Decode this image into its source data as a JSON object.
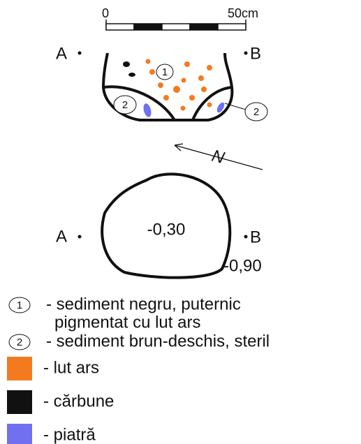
{
  "scale": {
    "start": "0",
    "end": "50cm"
  },
  "section": {
    "left": "A",
    "right": "B",
    "layer1": "1",
    "layer2_left": "2",
    "layer2_right": "2"
  },
  "north": "N",
  "plan": {
    "left": "A",
    "right": "B",
    "top_depth": "-0,30",
    "bottom_depth": "-0,90"
  },
  "legend": [
    {
      "symbol": "1",
      "text": "- sediment negru, puternic",
      "text2": "pigmentat cu lut ars"
    },
    {
      "symbol": "2",
      "text": "- sediment brun-deschis, steril"
    },
    {
      "color": "#f47a20",
      "text": "- lut ars"
    },
    {
      "color": "#111111",
      "text": "- cărbune"
    },
    {
      "color": "#7070f0",
      "text": "- piatră"
    }
  ]
}
